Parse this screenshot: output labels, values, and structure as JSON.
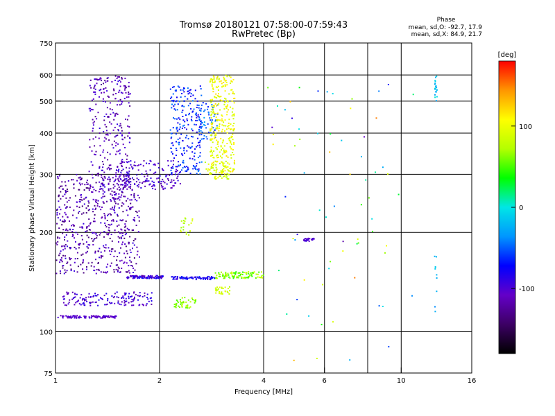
{
  "chart_data": {
    "type": "scatter",
    "title": "Tromsø 20180121 07:58:00-07:59:43",
    "subtitle": "RwPretec (Bp)",
    "xlabel": "Frequency [MHz]",
    "ylabel": "Stationary phase Virtual Height [km]",
    "x_scale": "log",
    "y_scale": "log",
    "xlim": [
      1,
      16
    ],
    "ylim": [
      75,
      750
    ],
    "x_ticks": [
      1,
      2,
      4,
      6,
      10,
      16
    ],
    "x_tick_labels": [
      "1",
      "2",
      "4",
      "6",
      "10",
      "16"
    ],
    "x_grid": [
      2,
      4,
      6,
      8,
      10
    ],
    "y_ticks": [
      75,
      100,
      200,
      300,
      400,
      500,
      600,
      750
    ],
    "y_tick_labels": [
      "75",
      "100",
      "200",
      "300",
      "400",
      "500",
      "600",
      "750"
    ],
    "y_grid": [
      100,
      200,
      300,
      400,
      500,
      600
    ],
    "grid": true,
    "phase_stats": {
      "header": "Phase",
      "o_line": "mean, sd,O: -92.7, 17.9",
      "x_line": "mean, sd,X:  84.9, 21.7"
    },
    "colorbar": {
      "label": "[deg]",
      "range": [
        -180,
        180
      ],
      "ticks": [
        100,
        0,
        -100
      ],
      "tick_labels": [
        "100",
        "0",
        "-100"
      ],
      "colormap": [
        "#000000",
        "#3c0064",
        "#6400c8",
        "#0000ff",
        "#0096ff",
        "#00e6e6",
        "#00ff00",
        "#b4ff00",
        "#ffff00",
        "#ff9600",
        "#ff0000"
      ]
    },
    "clusters": [
      {
        "x": [
          1.0,
          1.5
        ],
        "y": [
          110,
          112
        ],
        "phase": [
          -115,
          -95
        ],
        "n": 110
      },
      {
        "x": [
          1.0,
          1.75
        ],
        "y": [
          150,
          300
        ],
        "phase": [
          -140,
          -90
        ],
        "n": 600
      },
      {
        "x": [
          1.25,
          1.65
        ],
        "y": [
          250,
          600
        ],
        "phase": [
          -130,
          -90
        ],
        "n": 300
      },
      {
        "x": [
          1.5,
          2.3
        ],
        "y": [
          270,
          330
        ],
        "phase": [
          -120,
          -85
        ],
        "n": 160
      },
      {
        "x": [
          1.6,
          2.05
        ],
        "y": [
          145,
          148
        ],
        "phase": [
          -120,
          -70
        ],
        "n": 90
      },
      {
        "x": [
          1.05,
          1.9
        ],
        "y": [
          120,
          132
        ],
        "phase": [
          -120,
          -80
        ],
        "n": 150
      },
      {
        "x": [
          2.15,
          2.65
        ],
        "y": [
          300,
          560
        ],
        "phase": [
          -90,
          -40
        ],
        "n": 230
      },
      {
        "x": [
          2.6,
          2.95
        ],
        "y": [
          380,
          500
        ],
        "phase": [
          -70,
          -30
        ],
        "n": 70
      },
      {
        "x": [
          2.8,
          3.3
        ],
        "y": [
          300,
          600
        ],
        "phase": [
          80,
          120
        ],
        "n": 300
      },
      {
        "x": [
          2.7,
          3.2
        ],
        "y": [
          290,
          330
        ],
        "phase": [
          70,
          110
        ],
        "n": 60
      },
      {
        "x": [
          2.15,
          2.9
        ],
        "y": [
          144,
          147
        ],
        "phase": [
          -100,
          -60
        ],
        "n": 80
      },
      {
        "x": [
          2.2,
          2.55
        ],
        "y": [
          118,
          128
        ],
        "phase": [
          50,
          80
        ],
        "n": 45
      },
      {
        "x": [
          2.3,
          2.5
        ],
        "y": [
          195,
          225
        ],
        "phase": [
          60,
          100
        ],
        "n": 20
      },
      {
        "x": [
          2.9,
          4.0
        ],
        "y": [
          145,
          152
        ],
        "phase": [
          40,
          90
        ],
        "n": 110
      },
      {
        "x": [
          2.9,
          3.2
        ],
        "y": [
          130,
          137
        ],
        "phase": [
          70,
          100
        ],
        "n": 30
      },
      {
        "x": [
          5.2,
          5.6
        ],
        "y": [
          188,
          192
        ],
        "phase": [
          -110,
          -90
        ],
        "n": 25
      },
      {
        "x": [
          12.5,
          12.7
        ],
        "y": [
          500,
          600
        ],
        "phase": [
          -30,
          10
        ],
        "n": 20
      },
      {
        "x": [
          12.5,
          12.7
        ],
        "y": [
          115,
          180
        ],
        "phase": [
          -40,
          -10
        ],
        "n": 10
      },
      {
        "x": [
          4,
          11
        ],
        "y": [
          80,
          600
        ],
        "phase": [
          -120,
          150
        ],
        "n": 70
      }
    ]
  }
}
